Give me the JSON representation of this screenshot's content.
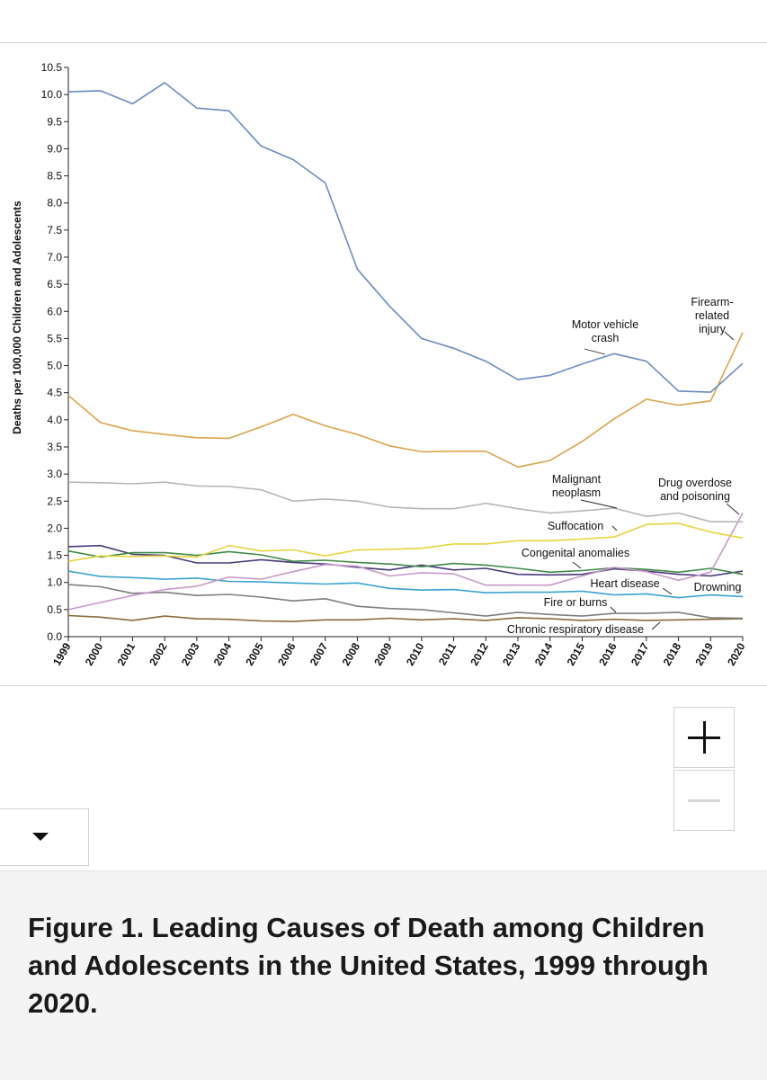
{
  "caption": "Figure 1. Leading Causes of Death among Children and Adolescents in the United States, 1999 through 2020.",
  "controls": {
    "zoom_in_icon": "plus-icon",
    "zoom_out_icon": "minus-icon",
    "dropdown_icon": "caret-down-icon"
  },
  "chart_data": {
    "type": "line",
    "title": "Leading Causes of Death among Children and Adolescents in the United States, 1999 through 2020",
    "xlabel": "",
    "ylabel": "Deaths per 100,000 Children and Adolescents",
    "x": [
      1999,
      2000,
      2001,
      2002,
      2003,
      2004,
      2005,
      2006,
      2007,
      2008,
      2009,
      2010,
      2011,
      2012,
      2013,
      2014,
      2015,
      2016,
      2017,
      2018,
      2019,
      2020
    ],
    "x_tick_labels": [
      "1999",
      "2000",
      "2001",
      "2002",
      "2003",
      "2004",
      "2005",
      "2006",
      "2007",
      "2008",
      "2009",
      "2010",
      "2011",
      "2012",
      "2013",
      "2014",
      "2015",
      "2016",
      "2017",
      "2018",
      "2019",
      "2020"
    ],
    "y_ticks": [
      "0.0",
      "0.5",
      "1.0",
      "1.5",
      "2.0",
      "2.5",
      "3.0",
      "3.5",
      "4.0",
      "4.5",
      "5.0",
      "5.5",
      "6.0",
      "6.5",
      "7.0",
      "7.5",
      "8.0",
      "8.5",
      "9.0",
      "9.5",
      "10.0",
      "10.5"
    ],
    "ylim": [
      0,
      10.5
    ],
    "xlim": [
      1999,
      2020
    ],
    "grid": false,
    "series": [
      {
        "name": "Motor vehicle crash",
        "label_lines": [
          "Motor vehicle",
          "crash"
        ],
        "color": "#6a8cc3",
        "values": [
          10.05,
          10.07,
          9.83,
          10.22,
          9.75,
          9.7,
          9.05,
          8.8,
          8.37,
          6.78,
          6.1,
          5.5,
          5.32,
          5.08,
          4.74,
          4.82,
          5.03,
          5.22,
          5.08,
          4.53,
          4.51,
          5.04
        ]
      },
      {
        "name": "Firearm-related injury",
        "label_lines": [
          "Firearm-",
          "related",
          "injury"
        ],
        "color": "#d9a44c",
        "values": [
          4.45,
          3.95,
          3.8,
          3.73,
          3.67,
          3.66,
          3.87,
          4.1,
          3.89,
          3.73,
          3.52,
          3.41,
          3.42,
          3.42,
          3.13,
          3.25,
          3.6,
          4.02,
          4.38,
          4.27,
          4.35,
          5.61
        ]
      },
      {
        "name": "Malignant neoplasm",
        "label_lines": [
          "Malignant",
          "neoplasm"
        ],
        "color": "#b6b6b6",
        "values": [
          2.85,
          2.84,
          2.82,
          2.85,
          2.78,
          2.77,
          2.71,
          2.5,
          2.54,
          2.5,
          2.39,
          2.36,
          2.36,
          2.46,
          2.36,
          2.28,
          2.32,
          2.37,
          2.22,
          2.28,
          2.12,
          2.12
        ]
      },
      {
        "name": "Suffocation",
        "label_lines": [
          "Suffocation"
        ],
        "color": "#e8d43c",
        "values": [
          1.39,
          1.49,
          1.48,
          1.49,
          1.47,
          1.68,
          1.58,
          1.6,
          1.49,
          1.6,
          1.61,
          1.63,
          1.71,
          1.71,
          1.77,
          1.77,
          1.8,
          1.84,
          2.07,
          2.09,
          1.93,
          1.82
        ]
      },
      {
        "name": "Drug overdose and poisoning",
        "label_lines": [
          "Drug overdose",
          "and poisoning"
        ],
        "color": "#c79ac9",
        "values": [
          0.5,
          0.63,
          0.76,
          0.87,
          0.93,
          1.1,
          1.06,
          1.2,
          1.33,
          1.3,
          1.12,
          1.18,
          1.16,
          0.95,
          0.95,
          0.95,
          1.12,
          1.28,
          1.2,
          1.04,
          1.19,
          2.28
        ]
      },
      {
        "name": "Congenital anomalies",
        "label_lines": [
          "Congenital anomalies"
        ],
        "color": "#3e8a48",
        "values": [
          1.58,
          1.47,
          1.55,
          1.55,
          1.5,
          1.57,
          1.51,
          1.39,
          1.41,
          1.37,
          1.34,
          1.29,
          1.35,
          1.32,
          1.26,
          1.19,
          1.22,
          1.27,
          1.24,
          1.19,
          1.26,
          1.15
        ]
      },
      {
        "name": "Drowning",
        "label_lines": [
          "Drowning"
        ],
        "color": "#4a3a7a",
        "values": [
          1.66,
          1.68,
          1.52,
          1.5,
          1.36,
          1.36,
          1.42,
          1.37,
          1.34,
          1.28,
          1.23,
          1.32,
          1.23,
          1.26,
          1.15,
          1.14,
          1.15,
          1.25,
          1.21,
          1.15,
          1.12,
          1.21
        ]
      },
      {
        "name": "Heart disease",
        "label_lines": [
          "Heart disease"
        ],
        "color": "#3aa3cf",
        "values": [
          1.21,
          1.11,
          1.09,
          1.06,
          1.08,
          1.02,
          1.01,
          0.99,
          0.97,
          0.99,
          0.89,
          0.86,
          0.87,
          0.81,
          0.82,
          0.82,
          0.84,
          0.77,
          0.79,
          0.72,
          0.77,
          0.74
        ]
      },
      {
        "name": "Fire or burns",
        "label_lines": [
          "Fire or burns"
        ],
        "color": "#7e7e7e",
        "values": [
          0.96,
          0.92,
          0.8,
          0.82,
          0.76,
          0.78,
          0.73,
          0.66,
          0.7,
          0.56,
          0.52,
          0.5,
          0.44,
          0.38,
          0.45,
          0.41,
          0.38,
          0.43,
          0.43,
          0.45,
          0.35,
          0.34
        ]
      },
      {
        "name": "Chronic respiratory disease",
        "label_lines": [
          "Chronic respiratory disease"
        ],
        "color": "#8a6a3a",
        "values": [
          0.39,
          0.36,
          0.3,
          0.38,
          0.33,
          0.32,
          0.29,
          0.28,
          0.31,
          0.31,
          0.34,
          0.31,
          0.33,
          0.3,
          0.35,
          0.33,
          0.3,
          0.32,
          0.3,
          0.31,
          0.32,
          0.33
        ]
      }
    ],
    "annotations": [
      {
        "series": "Motor vehicle crash",
        "placement": "above the line near 2015-2016, leader line to 2016"
      },
      {
        "series": "Firearm-related injury",
        "placement": "top-right, leader line to 2020"
      },
      {
        "series": "Malignant neoplasm",
        "placement": "above the line near 2014-2015, leader line to 2016"
      },
      {
        "series": "Drug overdose and poisoning",
        "placement": "upper right, leader line to 2020"
      },
      {
        "series": "Suffocation",
        "placement": "left of 2016, leader line"
      },
      {
        "series": "Congenital anomalies",
        "placement": "above lines near 2014, leader line"
      },
      {
        "series": "Heart disease",
        "placement": "near 2017-2018, leader line"
      },
      {
        "series": "Drowning",
        "placement": "right edge below lines"
      },
      {
        "series": "Fire or burns",
        "placement": "near 2014-2015, leader line"
      },
      {
        "series": "Chronic respiratory disease",
        "placement": "bottom near 2013-2017, leader line"
      }
    ]
  }
}
